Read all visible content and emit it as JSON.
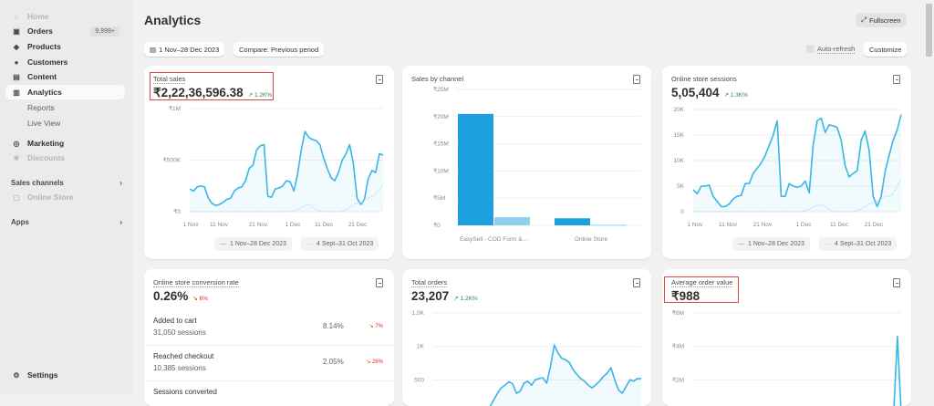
{
  "sidebar": {
    "items": [
      {
        "label": "Home",
        "icon": "home-icon"
      },
      {
        "label": "Orders",
        "icon": "inbox-icon",
        "badge": "9,999+"
      },
      {
        "label": "Products",
        "icon": "tag-icon"
      },
      {
        "label": "Customers",
        "icon": "person-icon"
      },
      {
        "label": "Content",
        "icon": "image-icon"
      },
      {
        "label": "Analytics",
        "icon": "bar-chart-icon"
      },
      {
        "label": "Reports"
      },
      {
        "label": "Live View"
      },
      {
        "label": "Marketing",
        "icon": "target-icon"
      },
      {
        "label": "Discounts",
        "icon": "discount-icon"
      }
    ],
    "sales_channels": "Sales channels",
    "online_store": "Online Store",
    "apps": "Apps",
    "settings": "Settings"
  },
  "header": {
    "title": "Analytics",
    "fullscreen": "Fullscreen",
    "date_range": "1 Nov–28 Dec 2023",
    "compare": "Compare: Previous period",
    "auto_refresh": "Auto-refresh",
    "customize": "Customize"
  },
  "colors": {
    "accent": "#3ab5e6",
    "prev": "#9fd8f0",
    "highlight": "#e04848"
  },
  "cards": {
    "total_sales": {
      "title": "Total sales",
      "value": "₹2,22,36,596.38",
      "change": "↗ 1.2K%",
      "legend_current": "1 Nov–28 Dec 2023",
      "legend_prev": "4 Sept–31 Oct 2023"
    },
    "sales_by_channel": {
      "title": "Sales by channel"
    },
    "sessions": {
      "title": "Online store sessions",
      "value": "5,05,404",
      "change": "↗ 1.3K%",
      "legend_current": "1 Nov–28 Dec 2023",
      "legend_prev": "4 Sept–31 Oct 2023"
    },
    "conversion": {
      "title": "Online store conversion rate",
      "value": "0.26%",
      "change": "↘ 6%",
      "rows": [
        {
          "label": "Added to cart",
          "sessions": "31,050 sessions",
          "pct": "8.14%",
          "change": "↘ 7%"
        },
        {
          "label": "Reached checkout",
          "sessions": "10,385 sessions",
          "pct": "2.05%",
          "change": "↘ 26%"
        },
        {
          "label": "Sessions converted"
        }
      ]
    },
    "total_orders": {
      "title": "Total orders",
      "value": "23,207",
      "change": "↗ 1.2K%"
    },
    "aov": {
      "title": "Average order value",
      "value": "₹988"
    }
  },
  "chart_data": [
    {
      "type": "line",
      "title": "Total sales",
      "yticks": [
        "₹0",
        "₹500K",
        "₹1M"
      ],
      "ylim": [
        0,
        1000
      ],
      "unit": "K",
      "xticks": [
        "1 Nov",
        "11 Nov",
        "21 Nov",
        "1 Dec",
        "11 Dec",
        "21 Dec"
      ],
      "series": [
        {
          "name": "1 Nov–28 Dec 2023",
          "values": [
            220,
            200,
            240,
            250,
            240,
            130,
            80,
            60,
            70,
            90,
            120,
            130,
            200,
            230,
            240,
            300,
            420,
            450,
            600,
            640,
            650,
            150,
            140,
            220,
            230,
            250,
            300,
            290,
            200,
            360,
            600,
            780,
            720,
            700,
            690,
            650,
            520,
            420,
            330,
            300,
            380,
            500,
            560,
            650,
            470,
            130,
            70,
            120,
            320,
            400,
            380,
            560,
            550
          ]
        },
        {
          "name": "4 Sept–31 Oct 2023",
          "values": [
            0,
            0,
            0,
            0,
            0,
            0,
            0,
            0,
            0,
            0,
            0,
            0,
            0,
            0,
            0,
            0,
            0,
            0,
            0,
            0,
            0,
            0,
            0,
            0,
            0,
            0,
            0,
            0,
            10,
            20,
            40,
            60,
            70,
            50,
            20,
            5,
            0,
            0,
            0,
            0,
            0,
            5,
            20,
            40,
            70,
            80,
            90,
            110,
            130,
            150,
            170,
            220,
            260
          ]
        }
      ]
    },
    {
      "type": "bar",
      "title": "Sales by channel",
      "yticks": [
        "₹0",
        "₹5M",
        "₹10M",
        "₹15M",
        "₹20M",
        "₹25M"
      ],
      "ylim": [
        0,
        25
      ],
      "unit": "M",
      "categories": [
        "EasySell - COD Form &...",
        "Online Store"
      ],
      "series": [
        {
          "name": "current",
          "values": [
            20.5,
            1.3
          ]
        },
        {
          "name": "previous",
          "values": [
            1.5,
            0.1
          ]
        }
      ]
    },
    {
      "type": "line",
      "title": "Online store sessions",
      "yticks": [
        "0",
        "5K",
        "10K",
        "15K",
        "20K"
      ],
      "ylim": [
        0,
        20
      ],
      "unit": "K",
      "xticks": [
        "1 Nov",
        "11 Nov",
        "21 Nov",
        "1 Dec",
        "11 Dec",
        "21 Dec"
      ],
      "series": [
        {
          "name": "1 Nov–28 Dec 2023",
          "values": [
            4.3,
            3.5,
            5,
            5,
            5.2,
            3,
            2,
            1,
            1,
            1.5,
            2.5,
            3,
            3.2,
            5.5,
            5.5,
            7.5,
            8.5,
            9.5,
            11,
            13,
            15,
            17.8,
            3,
            3,
            5.5,
            5,
            4.8,
            5,
            6,
            3.7,
            13,
            17.8,
            18.3,
            15.5,
            17,
            16.8,
            16.5,
            14,
            9,
            6.8,
            7.5,
            8,
            14,
            15.8,
            12,
            3,
            1,
            3,
            8,
            11,
            14,
            16,
            19
          ]
        },
        {
          "name": "4 Sept–31 Oct 2023",
          "values": [
            0,
            0,
            0,
            0,
            0,
            0,
            0,
            0,
            0,
            0,
            0,
            0,
            0,
            0,
            0,
            0,
            0,
            0,
            0,
            0,
            0,
            0,
            0,
            0,
            0,
            0,
            0,
            0,
            0.2,
            0.5,
            0.9,
            1.2,
            1.4,
            1,
            0.4,
            0,
            0,
            0,
            0,
            0,
            0,
            0.2,
            0.5,
            1,
            1.5,
            1.8,
            2,
            2.5,
            3,
            3,
            3.5,
            5,
            6.5
          ]
        }
      ]
    },
    {
      "type": "line",
      "title": "Total orders",
      "yticks": [
        "500",
        "1K",
        "1.5K"
      ],
      "ylim": [
        0,
        1500
      ],
      "series": [
        {
          "name": "current",
          "values": [
            0,
            0,
            0,
            0,
            0,
            0,
            0,
            0,
            0,
            0,
            0,
            0,
            0,
            0,
            50,
            100,
            200,
            300,
            380,
            420,
            470,
            440,
            300,
            330,
            450,
            480,
            420,
            500,
            520,
            530,
            450,
            700,
            1020,
            900,
            820,
            800,
            760,
            650,
            580,
            520,
            480,
            420,
            380,
            430,
            480,
            550,
            600,
            680,
            500,
            350,
            300,
            400,
            500,
            480,
            520,
            520
          ]
        }
      ]
    },
    {
      "type": "line",
      "title": "Average order value",
      "yticks": [
        "₹2M",
        "₹4M",
        "₹6M"
      ],
      "ylim": [
        0,
        6
      ],
      "series": [
        {
          "name": "current",
          "values": [
            0,
            0,
            0,
            0,
            0,
            0,
            0,
            0,
            0,
            0,
            0,
            0,
            0,
            0,
            0,
            0,
            0,
            0,
            0,
            0,
            0,
            0,
            0,
            0,
            0,
            0,
            0,
            0,
            0,
            0,
            0,
            0,
            0,
            0,
            0,
            0,
            0,
            0,
            0,
            0,
            0,
            0,
            0,
            0,
            0,
            0,
            0,
            0,
            0,
            0,
            0,
            0,
            0,
            0,
            4.6,
            0
          ]
        }
      ]
    }
  ]
}
